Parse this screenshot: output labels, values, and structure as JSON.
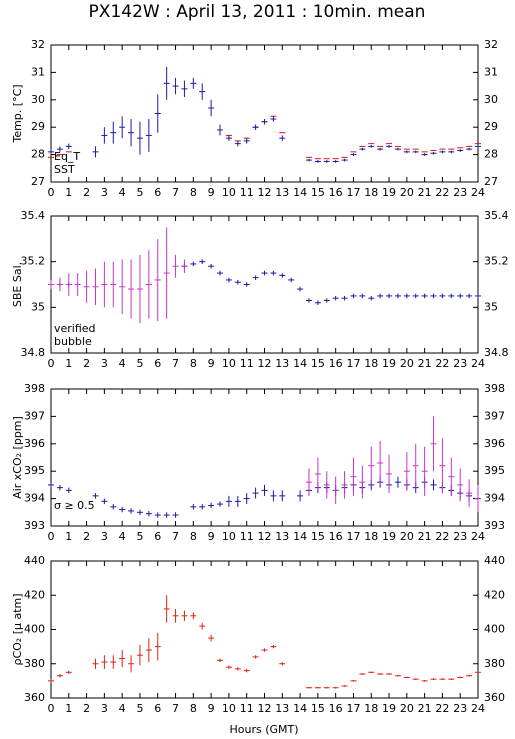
{
  "chart_data": [
    {
      "type": "scatter",
      "title": "PX142W : April 13, 2011 : 10min. mean",
      "y_label": "Temp. [°C]",
      "xlim": [
        0,
        24
      ],
      "xticks": [
        0,
        1,
        2,
        3,
        4,
        5,
        6,
        7,
        8,
        9,
        10,
        11,
        12,
        13,
        14,
        15,
        16,
        17,
        18,
        19,
        20,
        21,
        22,
        23,
        24
      ],
      "ylim": [
        27,
        32
      ],
      "yticks": [
        27,
        28,
        29,
        30,
        31,
        32
      ],
      "x": [
        0,
        0.5,
        1,
        1.5,
        2,
        2.5,
        3,
        3.5,
        4,
        4.5,
        5,
        5.5,
        6,
        6.5,
        7,
        7.5,
        8,
        8.5,
        9,
        9.5,
        10,
        10.5,
        11,
        11.5,
        12,
        12.5,
        13,
        13.5,
        14,
        14.5,
        15,
        15.5,
        16,
        16.5,
        17,
        17.5,
        18,
        18.5,
        19,
        19.5,
        20,
        20.5,
        21,
        21.5,
        22,
        22.5,
        23,
        23.5,
        24
      ],
      "series": [
        {
          "name": "Eq_T",
          "color": "#dd1111",
          "values": [
            27.9,
            28.0,
            28.1,
            null,
            null,
            null,
            null,
            null,
            null,
            null,
            null,
            null,
            null,
            null,
            null,
            null,
            null,
            null,
            null,
            null,
            28.7,
            28.5,
            28.6,
            29.0,
            29.2,
            29.4,
            28.8,
            null,
            null,
            27.9,
            27.85,
            27.85,
            27.85,
            27.9,
            28.1,
            28.3,
            28.4,
            28.3,
            28.4,
            28.3,
            28.2,
            28.2,
            28.1,
            28.15,
            28.2,
            28.2,
            28.25,
            28.3,
            28.4
          ]
        },
        {
          "name": "SST",
          "color": "#1a1aa6",
          "values": [
            28.1,
            28.2,
            28.3,
            null,
            null,
            28.1,
            28.7,
            28.8,
            29.0,
            28.8,
            28.6,
            28.7,
            29.5,
            30.6,
            30.5,
            30.4,
            30.6,
            30.3,
            29.7,
            28.9,
            28.6,
            28.4,
            28.5,
            29.0,
            29.2,
            29.3,
            28.6,
            null,
            null,
            27.8,
            27.75,
            27.75,
            27.75,
            27.8,
            28.0,
            28.2,
            28.3,
            28.2,
            28.3,
            28.2,
            28.1,
            28.1,
            28.0,
            28.05,
            28.1,
            28.1,
            28.15,
            28.2,
            28.3
          ],
          "errors": [
            0.1,
            0.1,
            0.1,
            null,
            null,
            0.2,
            0.3,
            0.4,
            0.4,
            0.5,
            0.6,
            0.6,
            0.7,
            0.6,
            0.3,
            0.3,
            0.2,
            0.3,
            0.3,
            0.2,
            0.1,
            0.1,
            0.1,
            0.1,
            0.1,
            0.1,
            0.1,
            null,
            null,
            0.05,
            0.05,
            0.05,
            0.05,
            0.05,
            0.05,
            0.05,
            0.05,
            0.05,
            0.05,
            0.05,
            0.05,
            0.05,
            0.05,
            0.05,
            0.05,
            0.05,
            0.05,
            0.05,
            0.05
          ]
        }
      ]
    },
    {
      "type": "scatter",
      "y_label": "SBE Sal.",
      "xlim": [
        0,
        24
      ],
      "xticks": [
        0,
        1,
        2,
        3,
        4,
        5,
        6,
        7,
        8,
        9,
        10,
        11,
        12,
        13,
        14,
        15,
        16,
        17,
        18,
        19,
        20,
        21,
        22,
        23,
        24
      ],
      "ylim": [
        34.8,
        35.4
      ],
      "yticks": [
        34.8,
        35,
        35.2,
        35.4
      ],
      "x": [
        0,
        0.5,
        1,
        1.5,
        2,
        2.5,
        3,
        3.5,
        4,
        4.5,
        5,
        5.5,
        6,
        6.5,
        7,
        7.5,
        8,
        8.5,
        9,
        9.5,
        10,
        10.5,
        11,
        11.5,
        12,
        12.5,
        13,
        13.5,
        14,
        14.5,
        15,
        15.5,
        16,
        16.5,
        17,
        17.5,
        18,
        18.5,
        19,
        19.5,
        20,
        20.5,
        21,
        21.5,
        22,
        22.5,
        23,
        23.5,
        24
      ],
      "series": [
        {
          "name": "verified",
          "color": "#1a1aa6",
          "values": [
            35.1,
            35.1,
            35.1,
            null,
            null,
            null,
            null,
            null,
            null,
            null,
            null,
            null,
            null,
            null,
            null,
            35.18,
            35.19,
            35.2,
            35.18,
            35.15,
            35.12,
            35.11,
            35.1,
            35.13,
            35.15,
            35.15,
            35.14,
            35.12,
            35.08,
            35.03,
            35.02,
            35.03,
            35.04,
            35.04,
            35.05,
            35.05,
            35.04,
            35.05,
            35.05,
            35.05,
            35.05,
            35.05,
            35.05,
            35.05,
            35.05,
            35.05,
            35.05,
            35.05,
            35.05
          ],
          "errors": [
            0.01,
            0.01,
            0.01,
            null,
            null,
            null,
            null,
            null,
            null,
            null,
            null,
            null,
            null,
            null,
            null,
            0.01,
            0.01,
            0.01,
            0.01,
            0.01,
            0.01,
            0.01,
            0.01,
            0.01,
            0.01,
            0.01,
            0.01,
            0.01,
            0.01,
            0.01,
            0.01,
            0.01,
            0.01,
            0.01,
            0.01,
            0.01,
            0.01,
            0.01,
            0.01,
            0.01,
            0.01,
            0.01,
            0.01,
            0.01,
            0.01,
            0.01,
            0.01,
            0.01,
            0.01
          ]
        },
        {
          "name": "bubble",
          "color": "#cc33cc",
          "values": [
            35.1,
            35.1,
            35.1,
            35.1,
            35.09,
            35.09,
            35.1,
            35.1,
            35.09,
            35.08,
            35.08,
            35.1,
            35.12,
            35.15,
            35.18,
            35.18,
            null,
            null,
            null,
            null,
            null,
            null,
            null,
            null,
            null,
            null,
            null,
            null,
            null,
            null,
            null,
            null,
            null,
            null,
            null,
            null,
            null,
            null,
            null,
            null,
            null,
            null,
            null,
            null,
            null,
            null,
            null,
            null,
            null
          ],
          "errors": [
            0.02,
            0.03,
            0.05,
            0.05,
            0.07,
            0.08,
            0.1,
            0.1,
            0.12,
            0.13,
            0.15,
            0.15,
            0.18,
            0.2,
            0.05,
            0.03,
            null,
            null,
            null,
            null,
            null,
            null,
            null,
            null,
            null,
            null,
            null,
            null,
            null,
            null,
            null,
            null,
            null,
            null,
            null,
            null,
            null,
            null,
            null,
            null,
            null,
            null,
            null,
            null,
            null,
            null,
            null,
            null,
            null
          ]
        }
      ]
    },
    {
      "type": "scatter",
      "y_label": "Air xCO₂ [ppm]",
      "xlim": [
        0,
        24
      ],
      "xticks": [
        0,
        1,
        2,
        3,
        4,
        5,
        6,
        7,
        8,
        9,
        10,
        11,
        12,
        13,
        14,
        15,
        16,
        17,
        18,
        19,
        20,
        21,
        22,
        23,
        24
      ],
      "ylim": [
        393,
        398
      ],
      "yticks": [
        393,
        394,
        395,
        396,
        397,
        398
      ],
      "x": [
        0,
        0.5,
        1,
        1.5,
        2,
        2.5,
        3,
        3.5,
        4,
        4.5,
        5,
        5.5,
        6,
        6.5,
        7,
        7.5,
        8,
        8.5,
        9,
        9.5,
        10,
        10.5,
        11,
        11.5,
        12,
        12.5,
        13,
        13.5,
        14,
        14.5,
        15,
        15.5,
        16,
        16.5,
        17,
        17.5,
        18,
        18.5,
        19,
        19.5,
        20,
        20.5,
        21,
        21.5,
        22,
        22.5,
        23,
        23.5,
        24
      ],
      "series": [
        {
          "color": "#1a1aa6",
          "values": [
            394.5,
            394.4,
            394.3,
            null,
            null,
            394.1,
            393.9,
            393.7,
            393.6,
            393.55,
            393.5,
            393.45,
            393.4,
            393.4,
            393.4,
            null,
            393.7,
            393.7,
            393.75,
            393.8,
            393.9,
            393.9,
            394.0,
            394.2,
            394.3,
            394.1,
            394.1,
            null,
            394.1,
            394.3,
            394.4,
            394.4,
            394.3,
            394.4,
            394.5,
            394.4,
            394.5,
            394.6,
            394.5,
            394.6,
            394.5,
            394.4,
            394.6,
            394.5,
            394.4,
            394.3,
            394.2,
            394.1,
            394.0
          ],
          "errors": [
            0.1,
            0.1,
            0.1,
            null,
            null,
            0.1,
            0.1,
            0.1,
            0.1,
            0.1,
            0.1,
            0.1,
            0.1,
            0.1,
            0.1,
            null,
            0.1,
            0.1,
            0.1,
            0.1,
            0.2,
            0.2,
            0.2,
            0.2,
            0.2,
            0.2,
            0.2,
            null,
            0.2,
            0.2,
            0.2,
            0.2,
            0.2,
            0.2,
            0.2,
            0.2,
            0.2,
            0.2,
            0.2,
            0.2,
            0.2,
            0.2,
            0.2,
            0.2,
            0.2,
            0.2,
            0.2,
            0.2,
            0.2
          ]
        },
        {
          "name": "σ ≥ 0.5",
          "color": "#cc33cc",
          "values": [
            null,
            null,
            null,
            null,
            null,
            null,
            null,
            null,
            null,
            null,
            null,
            null,
            null,
            null,
            null,
            null,
            null,
            null,
            null,
            null,
            null,
            null,
            null,
            null,
            null,
            null,
            null,
            null,
            null,
            394.6,
            394.9,
            394.5,
            394.3,
            394.5,
            394.8,
            394.6,
            395.2,
            395.3,
            394.9,
            null,
            395.0,
            395.2,
            395.0,
            396.0,
            395.2,
            394.8,
            394.5,
            394.2,
            394.0
          ],
          "errors": [
            null,
            null,
            null,
            null,
            null,
            null,
            null,
            null,
            null,
            null,
            null,
            null,
            null,
            null,
            null,
            null,
            null,
            null,
            null,
            null,
            null,
            null,
            null,
            null,
            null,
            null,
            null,
            null,
            null,
            0.5,
            0.6,
            0.5,
            0.5,
            0.5,
            0.7,
            0.6,
            0.7,
            0.8,
            0.7,
            null,
            0.7,
            0.8,
            0.9,
            1.0,
            1.0,
            0.7,
            0.6,
            0.5,
            0.5
          ]
        }
      ]
    },
    {
      "type": "scatter",
      "y_label": "ρCO₂ [μ atm]",
      "x_label": "Hours (GMT)",
      "xlim": [
        0,
        24
      ],
      "xticks": [
        0,
        1,
        2,
        3,
        4,
        5,
        6,
        7,
        8,
        9,
        10,
        11,
        12,
        13,
        14,
        15,
        16,
        17,
        18,
        19,
        20,
        21,
        22,
        23,
        24
      ],
      "ylim": [
        360,
        440
      ],
      "yticks": [
        360,
        380,
        400,
        420,
        440
      ],
      "x": [
        0,
        0.5,
        1,
        1.5,
        2,
        2.5,
        3,
        3.5,
        4,
        4.5,
        5,
        5.5,
        6,
        6.5,
        7,
        7.5,
        8,
        8.5,
        9,
        9.5,
        10,
        10.5,
        11,
        11.5,
        12,
        12.5,
        13,
        13.5,
        14,
        14.5,
        15,
        15.5,
        16,
        16.5,
        17,
        17.5,
        18,
        18.5,
        19,
        19.5,
        20,
        20.5,
        21,
        21.5,
        22,
        22.5,
        23,
        23.5,
        24
      ],
      "series": [
        {
          "color": "#dd2211",
          "values": [
            370,
            373,
            375,
            null,
            null,
            380,
            381,
            381,
            383,
            380,
            385,
            388,
            390,
            412,
            408,
            408,
            408,
            402,
            395,
            382,
            378,
            377,
            376,
            384,
            388,
            390,
            380,
            null,
            null,
            366,
            366,
            366,
            366,
            367,
            370,
            374,
            375,
            374,
            374,
            373,
            372,
            371,
            370,
            371,
            371,
            371,
            372,
            373,
            375
          ],
          "errors": [
            1,
            1,
            1,
            null,
            null,
            3,
            4,
            4,
            5,
            5,
            6,
            7,
            8,
            8,
            4,
            3,
            2,
            2,
            2,
            1,
            1,
            1,
            1,
            1,
            1,
            1,
            1,
            null,
            null,
            0.5,
            0.5,
            0.5,
            0.5,
            0.5,
            0.5,
            0.5,
            0.5,
            0.5,
            0.5,
            0.5,
            0.5,
            0.5,
            0.5,
            0.5,
            0.5,
            0.5,
            0.5,
            0.5,
            0.5
          ]
        }
      ]
    }
  ]
}
